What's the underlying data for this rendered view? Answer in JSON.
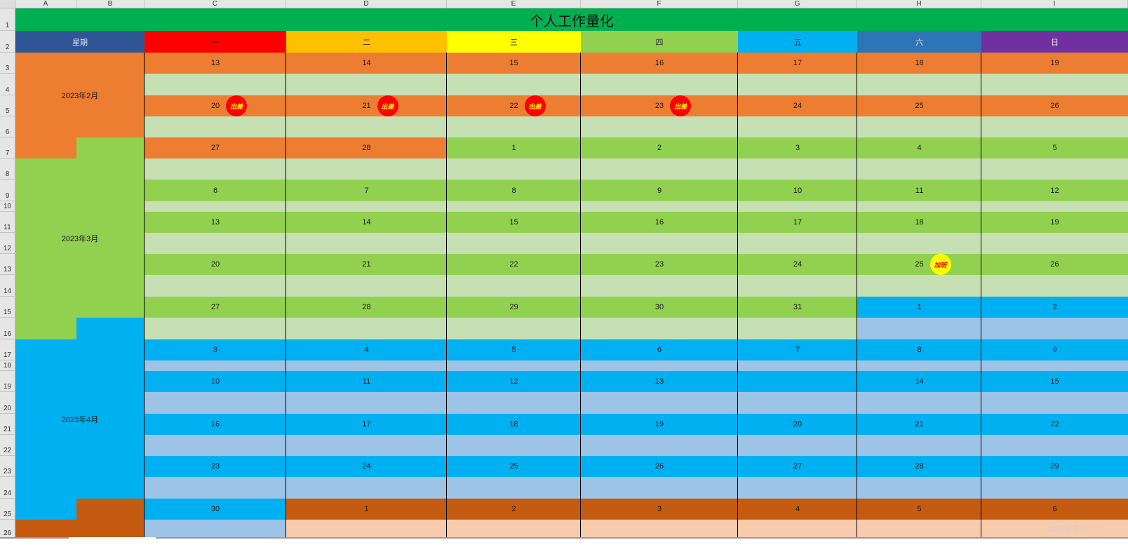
{
  "sheet": {
    "title": "个人工作量化",
    "week_header": "星期",
    "column_letters": [
      "A",
      "B",
      "C",
      "D",
      "E",
      "F",
      "G",
      "H",
      "I"
    ],
    "row_numbers": [
      "1",
      "2",
      "3",
      "4",
      "5",
      "6",
      "7",
      "8",
      "9",
      "10",
      "11",
      "12",
      "13",
      "14",
      "15",
      "16",
      "17",
      "18",
      "19",
      "20",
      "21",
      "22",
      "23",
      "24",
      "25",
      "26"
    ],
    "weekdays": [
      {
        "label": "一",
        "color": "#ff0000"
      },
      {
        "label": "二",
        "color": "#ffc000"
      },
      {
        "label": "三",
        "color": "#ffff00"
      },
      {
        "label": "四",
        "color": "#92d050"
      },
      {
        "label": "五",
        "color": "#00b0f0"
      },
      {
        "label": "六",
        "color": "#2e75b6"
      },
      {
        "label": "日",
        "color": "#7030a0"
      }
    ],
    "months": [
      {
        "label": "2023年2月",
        "color": "#ed7d31",
        "light": "#c6e0b4"
      },
      {
        "label": "2023年3月",
        "color": "#92d050",
        "light": "#c6e0b4"
      },
      {
        "label": "2023年4月",
        "color": "#00b0f0",
        "light": "#9dc3e6"
      },
      {
        "label": "",
        "color": "#c55a11",
        "light": "#f8cbad"
      }
    ],
    "weeks": [
      {
        "days": [
          "13",
          "14",
          "15",
          "16",
          "17",
          "18",
          "19"
        ],
        "months": [
          0,
          0,
          0,
          0,
          0,
          0,
          0
        ],
        "light": [
          1,
          1,
          1,
          1,
          1,
          1,
          1
        ]
      },
      {
        "days": [
          "20",
          "21",
          "22",
          "23",
          "24",
          "25",
          "26"
        ],
        "months": [
          0,
          0,
          0,
          0,
          0,
          0,
          0
        ],
        "light": [
          1,
          1,
          1,
          1,
          1,
          1,
          1
        ]
      },
      {
        "days": [
          "27",
          "28",
          "1",
          "2",
          "3",
          "4",
          "5"
        ],
        "months": [
          0,
          0,
          1,
          1,
          1,
          1,
          1
        ],
        "light": [
          1,
          1,
          1,
          1,
          1,
          1,
          1
        ]
      },
      {
        "days": [
          "6",
          "7",
          "8",
          "9",
          "10",
          "11",
          "12"
        ],
        "months": [
          1,
          1,
          1,
          1,
          1,
          1,
          1
        ],
        "light": [
          1,
          1,
          1,
          1,
          1,
          1,
          1
        ]
      },
      {
        "days": [
          "13",
          "14",
          "15",
          "16",
          "17",
          "18",
          "19"
        ],
        "months": [
          1,
          1,
          1,
          1,
          1,
          1,
          1
        ],
        "light": [
          1,
          1,
          1,
          1,
          1,
          1,
          1
        ]
      },
      {
        "days": [
          "20",
          "21",
          "22",
          "23",
          "24",
          "25",
          "26"
        ],
        "months": [
          1,
          1,
          1,
          1,
          1,
          1,
          1
        ],
        "light": [
          1,
          1,
          1,
          1,
          1,
          1,
          1
        ]
      },
      {
        "days": [
          "27",
          "28",
          "29",
          "30",
          "31",
          "1",
          "2"
        ],
        "months": [
          1,
          1,
          1,
          1,
          1,
          2,
          2
        ],
        "light": [
          1,
          1,
          1,
          1,
          1,
          2,
          2
        ]
      },
      {
        "days": [
          "3",
          "4",
          "5",
          "6",
          "7",
          "8",
          "9"
        ],
        "months": [
          2,
          2,
          2,
          2,
          2,
          2,
          2
        ],
        "light": [
          2,
          2,
          2,
          2,
          2,
          2,
          2
        ]
      },
      {
        "days": [
          "10",
          "11",
          "12",
          "13",
          "",
          "14",
          "15"
        ],
        "months": [
          2,
          2,
          2,
          2,
          2,
          2,
          2
        ],
        "light": [
          2,
          2,
          2,
          2,
          2,
          2,
          2
        ]
      },
      {
        "days": [
          "16",
          "17",
          "18",
          "19",
          "20",
          "21",
          "22"
        ],
        "months": [
          2,
          2,
          2,
          2,
          2,
          2,
          2
        ],
        "light": [
          2,
          2,
          2,
          2,
          2,
          2,
          2
        ]
      },
      {
        "days": [
          "23",
          "24",
          "25",
          "26",
          "27",
          "28",
          "29"
        ],
        "months": [
          2,
          2,
          2,
          2,
          2,
          2,
          2
        ],
        "light": [
          2,
          2,
          2,
          2,
          2,
          2,
          2
        ]
      },
      {
        "days": [
          "30",
          "1",
          "2",
          "3",
          "4",
          "5",
          "6"
        ],
        "months": [
          2,
          3,
          3,
          3,
          3,
          3,
          3
        ],
        "light": [
          2,
          3,
          3,
          3,
          3,
          3,
          3
        ]
      }
    ],
    "badges": [
      {
        "week": 1,
        "col": 0,
        "text": "出差",
        "type": "trip"
      },
      {
        "week": 1,
        "col": 1,
        "text": "出差",
        "type": "trip"
      },
      {
        "week": 1,
        "col": 2,
        "text": "出差",
        "type": "trip"
      },
      {
        "week": 1,
        "col": 3,
        "text": "出差",
        "type": "trip"
      },
      {
        "week": 5,
        "col": 5,
        "text": "加班",
        "type": "ot"
      }
    ]
  },
  "watermark": "CSDN @<br_>"
}
